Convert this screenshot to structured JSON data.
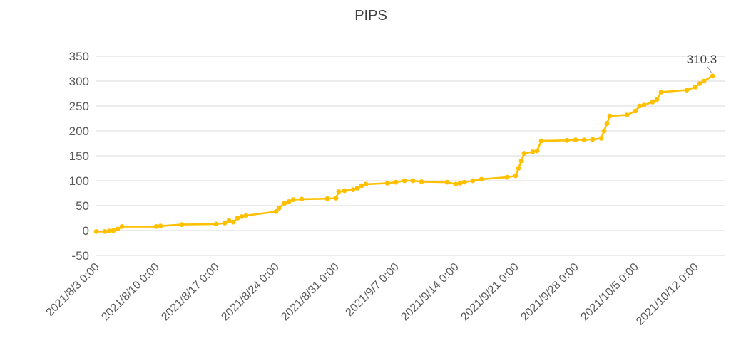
{
  "chart_data": {
    "type": "line",
    "title": "PIPS",
    "legend": "none",
    "grid": "horizontal",
    "series_color": "#FFC000",
    "grid_color": "#D9D9D9",
    "axis_label_color": "#595959",
    "title_color": "#404040",
    "annotation_color": "#404040",
    "ylim": [
      -50,
      350
    ],
    "y_ticks": [
      350,
      300,
      250,
      200,
      150,
      100,
      50,
      0,
      -50
    ],
    "x_tick_labels": [
      "2021/8/3 0:00",
      "2021/8/10 0:00",
      "2021/8/17 0:00",
      "2021/8/24 0:00",
      "2021/8/31 0:00",
      "2021/9/7 0:00",
      "2021/9/14 0:00",
      "2021/9/21 0:00",
      "2021/9/28 0:00",
      "2021/10/5 0:00",
      "2021/10/12 0:00"
    ],
    "annotation": {
      "text": "310.3",
      "value": 310.3
    },
    "series": [
      {
        "name": "PIPS",
        "points": [
          [
            "2021/8/3 0:00",
            -2
          ],
          [
            "2021/8/4 0:00",
            -2
          ],
          [
            "2021/8/4 12:00",
            -1
          ],
          [
            "2021/8/5 0:00",
            0
          ],
          [
            "2021/8/5 12:00",
            3
          ],
          [
            "2021/8/6 0:00",
            8
          ],
          [
            "2021/8/10 0:00",
            8
          ],
          [
            "2021/8/10 12:00",
            9
          ],
          [
            "2021/8/13 0:00",
            12
          ],
          [
            "2021/8/17 0:00",
            13
          ],
          [
            "2021/8/18 0:00",
            15
          ],
          [
            "2021/8/18 12:00",
            20
          ],
          [
            "2021/8/19 0:00",
            17
          ],
          [
            "2021/8/19 12:00",
            25
          ],
          [
            "2021/8/20 0:00",
            28
          ],
          [
            "2021/8/20 12:00",
            30
          ],
          [
            "2021/8/24 0:00",
            38
          ],
          [
            "2021/8/24 8:00",
            45
          ],
          [
            "2021/8/25 0:00",
            55
          ],
          [
            "2021/8/25 12:00",
            58
          ],
          [
            "2021/8/26 0:00",
            62
          ],
          [
            "2021/8/27 0:00",
            63
          ],
          [
            "2021/8/30 0:00",
            64
          ],
          [
            "2021/8/31 0:00",
            65
          ],
          [
            "2021/8/31 8:00",
            78
          ],
          [
            "2021/9/1 0:00",
            80
          ],
          [
            "2021/9/2 0:00",
            82
          ],
          [
            "2021/9/2 12:00",
            85
          ],
          [
            "2021/9/3 0:00",
            90
          ],
          [
            "2021/9/3 12:00",
            93
          ],
          [
            "2021/9/6 0:00",
            95
          ],
          [
            "2021/9/7 0:00",
            97
          ],
          [
            "2021/9/8 0:00",
            100
          ],
          [
            "2021/9/9 0:00",
            100
          ],
          [
            "2021/9/10 0:00",
            98
          ],
          [
            "2021/9/13 0:00",
            97
          ],
          [
            "2021/9/14 0:00",
            93
          ],
          [
            "2021/9/14 12:00",
            95
          ],
          [
            "2021/9/15 0:00",
            97
          ],
          [
            "2021/9/16 0:00",
            100
          ],
          [
            "2021/9/17 0:00",
            103
          ],
          [
            "2021/9/20 0:00",
            107
          ],
          [
            "2021/9/21 0:00",
            110
          ],
          [
            "2021/9/21 8:00",
            125
          ],
          [
            "2021/9/21 16:00",
            140
          ],
          [
            "2021/9/22 0:00",
            155
          ],
          [
            "2021/9/23 0:00",
            158
          ],
          [
            "2021/9/23 12:00",
            160
          ],
          [
            "2021/9/24 0:00",
            180
          ],
          [
            "2021/9/27 0:00",
            181
          ],
          [
            "2021/9/28 0:00",
            182
          ],
          [
            "2021/9/29 0:00",
            182
          ],
          [
            "2021/9/30 0:00",
            183
          ],
          [
            "2021/10/1 0:00",
            185
          ],
          [
            "2021/10/1 8:00",
            200
          ],
          [
            "2021/10/1 16:00",
            215
          ],
          [
            "2021/10/2 0:00",
            230
          ],
          [
            "2021/10/4 0:00",
            232
          ],
          [
            "2021/10/5 0:00",
            240
          ],
          [
            "2021/10/5 12:00",
            250
          ],
          [
            "2021/10/6 0:00",
            252
          ],
          [
            "2021/10/7 0:00",
            258
          ],
          [
            "2021/10/7 12:00",
            263
          ],
          [
            "2021/10/8 0:00",
            278
          ],
          [
            "2021/10/11 0:00",
            282
          ],
          [
            "2021/10/12 0:00",
            288
          ],
          [
            "2021/10/12 12:00",
            295
          ],
          [
            "2021/10/13 0:00",
            300
          ],
          [
            "2021/10/14 0:00",
            310.3
          ]
        ]
      }
    ]
  }
}
